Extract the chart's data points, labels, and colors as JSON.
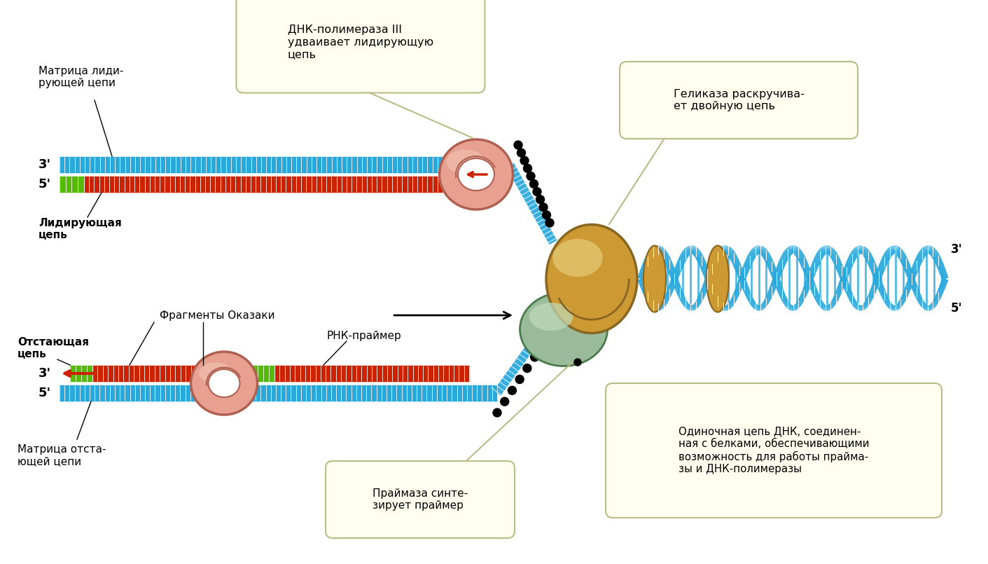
{
  "bg_color": "#ffffff",
  "labels": {
    "matrix_leading": "Матрица лиди-\nрующей цепи",
    "leading_strand": "Лидирующая\nцепь",
    "lagging_strand": "Отстающая\nцепь",
    "matrix_lagging": "Матрица отста-\nющей цепи",
    "okazaki": "Фрагменты Оказаки",
    "rna_primer": "РНК-праймер",
    "dnk_pol": "ДНК-полимераза III\nудваивает лидирующую\nцепь",
    "helicase": "Геликаза раскручива-\nет двойную цепь",
    "primase": "Праймаза синте-\nзирует праймер",
    "single_strand": "Одиночная цепь ДНК, соединен-\nная с белками, обеспечивающими\nвозможность для работы прайма-\nзы и ДНК-полимеразы"
  },
  "colors": {
    "blue_strand": "#29a8dc",
    "red_strand": "#cc2200",
    "green_segment": "#55bb00",
    "dna_pol_fill": "#e8a090",
    "dna_pol_edge": "#b06050",
    "helicase_fill": "#cc9933",
    "helicase_edge": "#886622",
    "primase_fill": "#99bb99",
    "primase_edge": "#4a7a4a",
    "bubble_fill": "#fffff0",
    "bubble_edge": "#bbbb88",
    "dot_color": "#111111",
    "strand_tick": "#ffffff"
  },
  "layout": {
    "fig_width": 14.11,
    "fig_height": 8.05
  }
}
